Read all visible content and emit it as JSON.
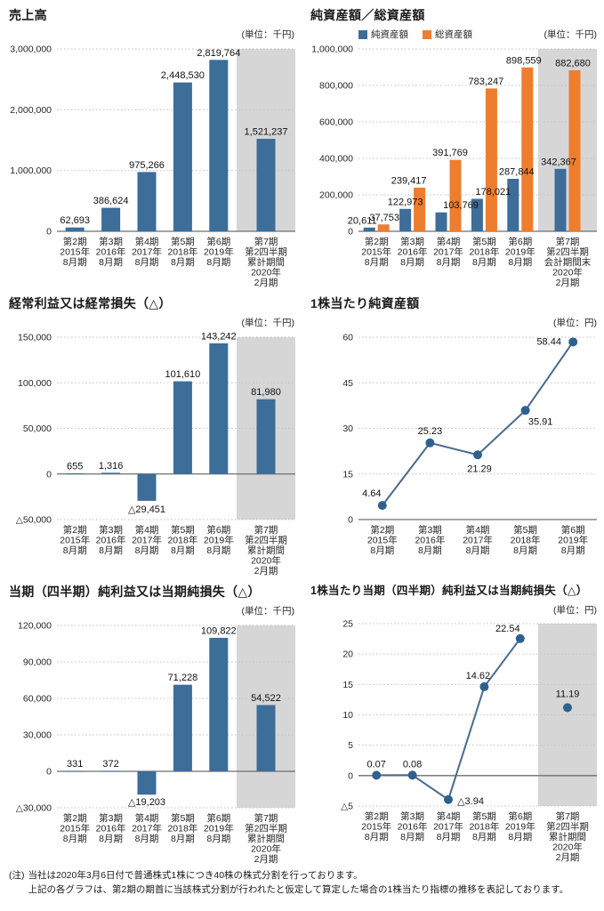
{
  "page": {
    "footnote": {
      "prefix": "(注)",
      "line1": "当社は2020年3月6日付で普通株式1株につき40株の株式分割を行っております。",
      "line2": "上記の各グラフは、第2期の期首に当該株式分割が行われたと仮定して算定した場合の1株当たり指標の推移を表記しております。"
    }
  },
  "colors": {
    "blue": "#3d6d99",
    "orange": "#ee7d2e",
    "line": "#4a6a8c",
    "marker": "#2f6190",
    "highlight": "#d6d6d7",
    "grid": "#c3c3c3",
    "zero": "#6e6e6e",
    "text": "#262626"
  },
  "chart_data": [
    {
      "type": "bar",
      "title": "売上高",
      "unit": "(単位：千円)",
      "ylim": [
        0,
        3000000
      ],
      "yticks": [
        {
          "v": 0,
          "label": "0"
        },
        {
          "v": 1000000,
          "label": "1,000,000"
        },
        {
          "v": 2000000,
          "label": "2,000,000"
        },
        {
          "v": 3000000,
          "label": "3,000,000"
        }
      ],
      "categories": [
        [
          "第2期",
          "2015年",
          "8月期"
        ],
        [
          "第3期",
          "2016年",
          "8月期"
        ],
        [
          "第4期",
          "2017年",
          "8月期"
        ],
        [
          "第5期",
          "2018年",
          "8月期"
        ],
        [
          "第6期",
          "2019年",
          "8月期"
        ],
        [
          "第7期",
          "第2四半期",
          "累計期間",
          "2020年",
          "2月期"
        ]
      ],
      "highlight_last": true,
      "series": [
        {
          "name": "売上高",
          "color": "blue",
          "values": [
            62693,
            386624,
            975266,
            2448530,
            2819764,
            1521237
          ],
          "labels": [
            "62,693",
            "386,624",
            "975,266",
            "2,448,530",
            "2,819,764",
            "1,521,237"
          ]
        }
      ]
    },
    {
      "type": "bar",
      "title": "純資産額／総資産額",
      "unit": "(単位：千円)",
      "legend": [
        "純資産額",
        "総資産額"
      ],
      "ylim": [
        0,
        1000000
      ],
      "yticks": [
        {
          "v": 0,
          "label": "0"
        },
        {
          "v": 200000,
          "label": "200,000"
        },
        {
          "v": 400000,
          "label": "400,000"
        },
        {
          "v": 600000,
          "label": "600,000"
        },
        {
          "v": 800000,
          "label": "800,000"
        },
        {
          "v": 1000000,
          "label": "1,000,000"
        }
      ],
      "categories": [
        [
          "第2期",
          "2015年",
          "8月期"
        ],
        [
          "第3期",
          "2016年",
          "8月期"
        ],
        [
          "第4期",
          "2017年",
          "8月期"
        ],
        [
          "第5期",
          "2018年",
          "8月期"
        ],
        [
          "第6期",
          "2019年",
          "8月期"
        ],
        [
          "第7期",
          "第2四半期",
          "会計期間末",
          "2020年",
          "2月期"
        ]
      ],
      "highlight_last": true,
      "series": [
        {
          "name": "純資産額",
          "color": "blue",
          "values": [
            20611,
            122973,
            103769,
            178021,
            287844,
            342367
          ],
          "labels": [
            "20,611",
            "122,973",
            "103,769",
            "178,021",
            "287,844",
            "342,367"
          ],
          "label_offsets": [
            [
              -16,
              0
            ],
            [
              -8,
              0
            ],
            [
              14,
              0
            ],
            [
              10,
              0
            ],
            [
              -4,
              0
            ],
            [
              -10,
              0
            ]
          ]
        },
        {
          "name": "総資産額",
          "color": "orange",
          "values": [
            37753,
            239417,
            391769,
            783247,
            898559,
            882680
          ],
          "labels": [
            "37,753",
            "239,417",
            "391,769",
            "783,247",
            "898,559",
            "882,680"
          ],
          "label_offsets": [
            [
              9,
              0
            ],
            [
              -4,
              0
            ],
            [
              2,
              0
            ],
            [
              2,
              0
            ],
            [
              4,
              0
            ],
            [
              6,
              0
            ]
          ]
        }
      ]
    },
    {
      "type": "bar",
      "title": "経常利益又は経常損失（△）",
      "unit": "(単位：千円)",
      "ylim": [
        -50000,
        150000
      ],
      "yticks": [
        {
          "v": -50000,
          "label": "△50,000"
        },
        {
          "v": 0,
          "label": "0"
        },
        {
          "v": 50000,
          "label": "50,000"
        },
        {
          "v": 100000,
          "label": "100,000"
        },
        {
          "v": 150000,
          "label": "150,000"
        }
      ],
      "categories": [
        [
          "第2期",
          "2015年",
          "8月期"
        ],
        [
          "第3期",
          "2016年",
          "8月期"
        ],
        [
          "第4期",
          "2017年",
          "8月期"
        ],
        [
          "第5期",
          "2018年",
          "8月期"
        ],
        [
          "第6期",
          "2019年",
          "8月期"
        ],
        [
          "第7期",
          "第2四半期",
          "累計期間",
          "2020年",
          "2月期"
        ]
      ],
      "highlight_last": true,
      "series": [
        {
          "name": "経常利益",
          "color": "blue",
          "values": [
            655,
            1316,
            -29451,
            101610,
            143242,
            81980
          ],
          "labels": [
            "655",
            "1,316",
            "△29,451",
            "101,610",
            "143,242",
            "81,980"
          ]
        }
      ]
    },
    {
      "type": "line",
      "title": "1株当たり純資産額",
      "unit": "(単位：円)",
      "ylim": [
        0,
        60
      ],
      "yticks": [
        {
          "v": 0,
          "label": "0"
        },
        {
          "v": 15,
          "label": "15"
        },
        {
          "v": 30,
          "label": "30"
        },
        {
          "v": 45,
          "label": "45"
        },
        {
          "v": 60,
          "label": "60"
        }
      ],
      "categories": [
        [
          "第2期",
          "2015年",
          "8月期"
        ],
        [
          "第3期",
          "2016年",
          "8月期"
        ],
        [
          "第4期",
          "2017年",
          "8月期"
        ],
        [
          "第5期",
          "2018年",
          "8月期"
        ],
        [
          "第6期",
          "2019年",
          "8月期"
        ]
      ],
      "highlight_last": false,
      "series": [
        {
          "name": "1株当たり純資産額",
          "color": "line",
          "values": [
            4.64,
            25.23,
            21.29,
            35.91,
            58.44
          ],
          "labels": [
            "4.64",
            "25.23",
            "21.29",
            "35.91",
            "58.44"
          ],
          "label_offsets": [
            [
              -12,
              -10
            ],
            [
              0,
              -10
            ],
            [
              2,
              19
            ],
            [
              17,
              16
            ],
            [
              -27,
              3
            ]
          ]
        }
      ]
    },
    {
      "type": "bar",
      "title": "当期（四半期）純利益又は当期純損失（△）",
      "unit": "(単位：千円)",
      "ylim": [
        -30000,
        120000
      ],
      "yticks": [
        {
          "v": -30000,
          "label": "△30,000"
        },
        {
          "v": 0,
          "label": "0"
        },
        {
          "v": 30000,
          "label": "30,000"
        },
        {
          "v": 60000,
          "label": "60,000"
        },
        {
          "v": 90000,
          "label": "90,000"
        },
        {
          "v": 120000,
          "label": "120,000"
        }
      ],
      "categories": [
        [
          "第2期",
          "2015年",
          "8月期"
        ],
        [
          "第3期",
          "2016年",
          "8月期"
        ],
        [
          "第4期",
          "2017年",
          "8月期"
        ],
        [
          "第5期",
          "2018年",
          "8月期"
        ],
        [
          "第6期",
          "2019年",
          "8月期"
        ],
        [
          "第7期",
          "第2四半期",
          "累計期間",
          "2020年",
          "2月期"
        ]
      ],
      "highlight_last": true,
      "series": [
        {
          "name": "当期純利益",
          "color": "blue",
          "values": [
            331,
            372,
            -19203,
            71228,
            109822,
            54522
          ],
          "labels": [
            "331",
            "372",
            "△19,203",
            "71,228",
            "109,822",
            "54,522"
          ]
        }
      ]
    },
    {
      "type": "line",
      "title": "1株当たり当期（四半期）純利益又は当期純損失（△）",
      "unit": "(単位：円)",
      "ylim": [
        -5,
        25
      ],
      "yticks": [
        {
          "v": -5,
          "label": "△5"
        },
        {
          "v": 0,
          "label": "0"
        },
        {
          "v": 5,
          "label": "5"
        },
        {
          "v": 10,
          "label": "10"
        },
        {
          "v": 15,
          "label": "15"
        },
        {
          "v": 20,
          "label": "20"
        },
        {
          "v": 25,
          "label": "25"
        }
      ],
      "categories": [
        [
          "第2期",
          "2015年",
          "8月期"
        ],
        [
          "第3期",
          "2016年",
          "8月期"
        ],
        [
          "第4期",
          "2017年",
          "8月期"
        ],
        [
          "第5期",
          "2018年",
          "8月期"
        ],
        [
          "第6期",
          "2019年",
          "8月期"
        ],
        [
          "第7期",
          "第2四半期",
          "累計期間",
          "2020年",
          "2月期"
        ]
      ],
      "highlight_last": true,
      "disconnect_last": true,
      "series": [
        {
          "name": "1株当たり当期純利益",
          "color": "line",
          "values": [
            0.07,
            0.08,
            -3.94,
            14.62,
            22.54,
            11.19
          ],
          "labels": [
            "0.07",
            "0.08",
            "△3.94",
            "14.62",
            "22.54",
            "11.19"
          ],
          "label_offsets": [
            [
              0,
              -9
            ],
            [
              0,
              -9
            ],
            [
              25,
              5
            ],
            [
              -7,
              -9
            ],
            [
              -14,
              -8
            ],
            [
              0,
              -12
            ]
          ]
        }
      ]
    }
  ]
}
